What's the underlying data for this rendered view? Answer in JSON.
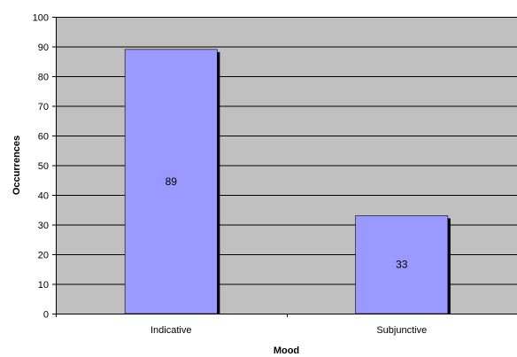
{
  "chart_data": {
    "type": "bar",
    "categories": [
      "Indicative",
      "Subjunctive"
    ],
    "values": [
      89,
      33
    ],
    "data_labels": [
      "89",
      "33"
    ],
    "xlabel": "Mood",
    "ylabel": "Occurrences",
    "ylim": [
      0,
      100
    ],
    "yticks": [
      0,
      10,
      20,
      30,
      40,
      50,
      60,
      70,
      80,
      90,
      100
    ],
    "grid": true,
    "legend": "none",
    "colors": {
      "plot_background": "#c0c0c0",
      "bar_fill": "#9999ff",
      "bar_shadow": "#000000",
      "gridline": "#000000"
    }
  }
}
